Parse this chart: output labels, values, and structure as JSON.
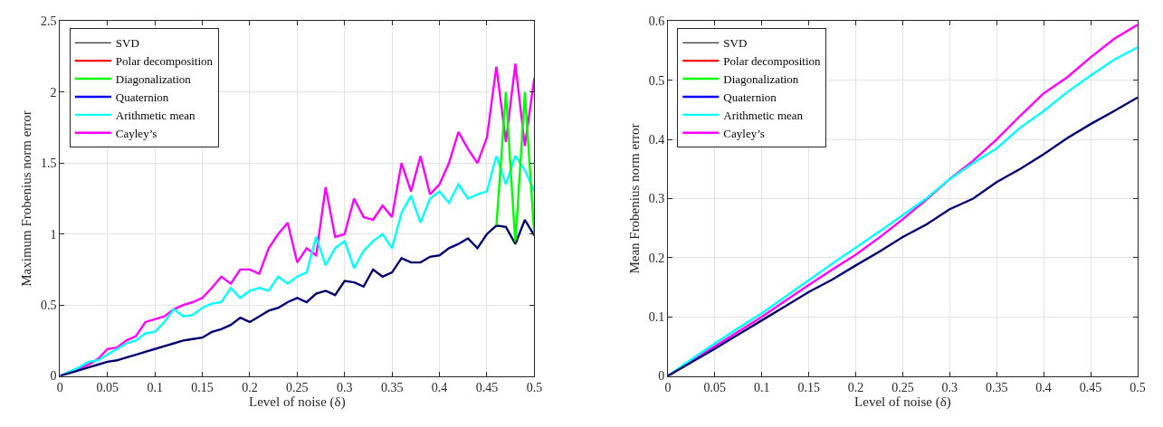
{
  "chart_data": [
    {
      "type": "line",
      "xlabel": "Level of noise (δ)",
      "ylabel": "Maximum Frobenius norm error",
      "x": [
        0,
        0.01,
        0.02,
        0.03,
        0.04,
        0.05,
        0.06,
        0.07,
        0.08,
        0.09,
        0.1,
        0.11,
        0.12,
        0.13,
        0.14,
        0.15,
        0.16,
        0.17,
        0.18,
        0.19,
        0.2,
        0.21,
        0.22,
        0.23,
        0.24,
        0.25,
        0.26,
        0.27,
        0.28,
        0.29,
        0.3,
        0.31,
        0.32,
        0.33,
        0.34,
        0.35,
        0.36,
        0.37,
        0.38,
        0.39,
        0.4,
        0.41,
        0.42,
        0.43,
        0.44,
        0.45,
        0.46,
        0.47,
        0.48,
        0.49,
        0.5
      ],
      "xlim": [
        0,
        0.5
      ],
      "ylim": [
        0,
        2.5
      ],
      "xticks": [
        0,
        0.05,
        0.1,
        0.15,
        0.2,
        0.25,
        0.3,
        0.35,
        0.4,
        0.45,
        0.5
      ],
      "yticks": [
        0,
        0.5,
        1,
        1.5,
        2,
        2.5
      ],
      "grid": true,
      "legend": "top left",
      "line_style": "solid",
      "series": [
        {
          "name": "SVD",
          "color": "#000000",
          "values": [
            0,
            0.02,
            0.04,
            0.06,
            0.08,
            0.1,
            0.11,
            0.13,
            0.15,
            0.17,
            0.19,
            0.21,
            0.23,
            0.25,
            0.26,
            0.27,
            0.31,
            0.33,
            0.36,
            0.41,
            0.38,
            0.42,
            0.46,
            0.48,
            0.52,
            0.55,
            0.52,
            0.58,
            0.6,
            0.57,
            0.67,
            0.66,
            0.63,
            0.75,
            0.7,
            0.73,
            0.83,
            0.8,
            0.8,
            0.84,
            0.85,
            0.9,
            0.93,
            0.97,
            0.9,
            1.0,
            1.06,
            1.05,
            0.93,
            1.1,
            0.99
          ]
        },
        {
          "name": "Polar decomposition",
          "color": "#ff0000",
          "values": [
            null,
            null,
            null,
            null,
            null,
            null,
            null,
            null,
            null,
            null,
            null,
            null,
            null,
            null,
            null,
            null,
            null,
            null,
            null,
            null,
            null,
            null,
            null,
            null,
            null,
            null,
            null,
            null,
            null,
            null,
            null,
            null,
            null,
            null,
            null,
            null,
            null,
            null,
            null,
            null,
            null,
            null,
            null,
            null,
            null,
            null,
            null,
            null,
            null,
            null,
            null
          ]
        },
        {
          "name": "Diagonalization",
          "color": "#00ff00",
          "values": [
            null,
            null,
            null,
            null,
            null,
            null,
            null,
            null,
            null,
            null,
            null,
            null,
            null,
            null,
            null,
            null,
            null,
            null,
            null,
            null,
            null,
            null,
            null,
            null,
            null,
            null,
            null,
            null,
            null,
            null,
            null,
            null,
            null,
            null,
            null,
            null,
            null,
            null,
            null,
            null,
            null,
            null,
            null,
            null,
            null,
            null,
            1.06,
            2.0,
            0.93,
            2.0,
            0.99
          ]
        },
        {
          "name": "Quaternion",
          "color": "#0000ff",
          "values": [
            0,
            0.02,
            0.04,
            0.06,
            0.08,
            0.1,
            0.11,
            0.13,
            0.15,
            0.17,
            0.19,
            0.21,
            0.23,
            0.25,
            0.26,
            0.27,
            0.31,
            0.33,
            0.36,
            0.41,
            0.38,
            0.42,
            0.46,
            0.48,
            0.52,
            0.55,
            0.52,
            0.58,
            0.6,
            0.57,
            0.67,
            0.66,
            0.63,
            0.75,
            0.7,
            0.73,
            0.83,
            0.8,
            0.8,
            0.84,
            0.85,
            0.9,
            0.93,
            0.97,
            0.9,
            1.0,
            1.06,
            1.05,
            0.93,
            1.1,
            0.99
          ]
        },
        {
          "name": "Arithmetic mean",
          "color": "#00ffff",
          "values": [
            0,
            0.03,
            0.06,
            0.1,
            0.11,
            0.15,
            0.19,
            0.23,
            0.25,
            0.3,
            0.31,
            0.38,
            0.47,
            0.42,
            0.43,
            0.48,
            0.51,
            0.52,
            0.62,
            0.55,
            0.6,
            0.62,
            0.6,
            0.7,
            0.65,
            0.7,
            0.73,
            0.98,
            0.78,
            0.9,
            0.95,
            0.76,
            0.88,
            0.95,
            1.0,
            0.9,
            1.15,
            1.27,
            1.08,
            1.25,
            1.3,
            1.22,
            1.35,
            1.25,
            1.28,
            1.3,
            1.55,
            1.35,
            1.55,
            1.45,
            1.3
          ]
        },
        {
          "name": "Cayley’s",
          "color": "#ff00ff",
          "values": [
            0,
            0.03,
            0.05,
            0.08,
            0.12,
            0.19,
            0.2,
            0.25,
            0.28,
            0.38,
            0.4,
            0.42,
            0.47,
            0.5,
            0.52,
            0.55,
            0.62,
            0.7,
            0.65,
            0.75,
            0.75,
            0.72,
            0.9,
            1.0,
            1.08,
            0.8,
            0.9,
            0.85,
            1.33,
            0.98,
            1.0,
            1.25,
            1.12,
            1.1,
            1.2,
            1.12,
            1.5,
            1.3,
            1.55,
            1.28,
            1.35,
            1.5,
            1.72,
            1.6,
            1.5,
            1.68,
            2.18,
            1.65,
            2.2,
            1.62,
            2.1
          ]
        }
      ]
    },
    {
      "type": "line",
      "xlabel": "Level of noise (δ)",
      "ylabel": "Mean Frobenius norm error",
      "x": [
        0,
        0.025,
        0.05,
        0.075,
        0.1,
        0.125,
        0.15,
        0.175,
        0.2,
        0.225,
        0.25,
        0.275,
        0.3,
        0.325,
        0.35,
        0.375,
        0.4,
        0.425,
        0.45,
        0.475,
        0.5
      ],
      "xlim": [
        0,
        0.5
      ],
      "ylim": [
        0,
        0.6
      ],
      "xticks": [
        0,
        0.05,
        0.1,
        0.15,
        0.2,
        0.25,
        0.3,
        0.35,
        0.4,
        0.45,
        0.5
      ],
      "yticks": [
        0,
        0.1,
        0.2,
        0.3,
        0.4,
        0.5,
        0.6
      ],
      "grid": true,
      "legend": "top left",
      "line_style": "solid",
      "series": [
        {
          "name": "SVD",
          "color": "#000000",
          "values": [
            0,
            0.023,
            0.046,
            0.07,
            0.094,
            0.118,
            0.142,
            0.163,
            0.187,
            0.21,
            0.235,
            0.256,
            0.282,
            0.3,
            0.328,
            0.35,
            0.375,
            0.402,
            0.426,
            0.448,
            0.471
          ]
        },
        {
          "name": "Polar decomposition",
          "color": "#ff0000",
          "values": [
            null,
            null,
            null,
            null,
            null,
            null,
            null,
            null,
            null,
            null,
            null,
            null,
            null,
            null,
            null,
            null,
            null,
            null,
            null,
            null,
            null
          ]
        },
        {
          "name": "Diagonalization",
          "color": "#00ff00",
          "values": [
            null,
            null,
            null,
            null,
            null,
            null,
            null,
            null,
            null,
            null,
            null,
            null,
            null,
            null,
            null,
            null,
            null,
            null,
            null,
            null,
            null
          ]
        },
        {
          "name": "Quaternion",
          "color": "#0000ff",
          "values": [
            0,
            0.023,
            0.046,
            0.07,
            0.094,
            0.118,
            0.142,
            0.163,
            0.187,
            0.21,
            0.235,
            0.256,
            0.282,
            0.3,
            0.328,
            0.35,
            0.375,
            0.402,
            0.426,
            0.448,
            0.471
          ]
        },
        {
          "name": "Arithmetic mean",
          "color": "#00ffff",
          "values": [
            0,
            0.028,
            0.055,
            0.081,
            0.106,
            0.134,
            0.162,
            0.19,
            0.217,
            0.244,
            0.272,
            0.3,
            0.333,
            0.36,
            0.385,
            0.42,
            0.448,
            0.48,
            0.508,
            0.535,
            0.556
          ]
        },
        {
          "name": "Cayley’s",
          "color": "#ff00ff",
          "values": [
            0,
            0.025,
            0.05,
            0.075,
            0.1,
            0.127,
            0.154,
            0.18,
            0.205,
            0.234,
            0.265,
            0.298,
            0.333,
            0.364,
            0.4,
            0.44,
            0.478,
            0.505,
            0.539,
            0.57,
            0.594
          ]
        }
      ]
    }
  ]
}
